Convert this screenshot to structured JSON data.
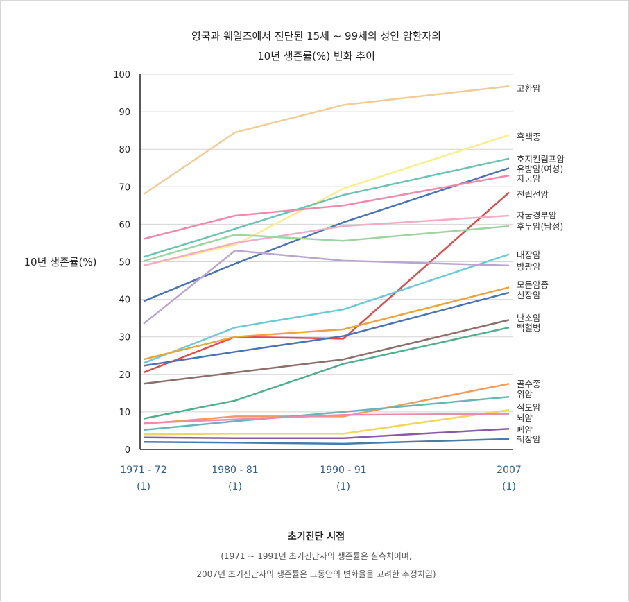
{
  "chart_data": {
    "type": "line",
    "title_line1": "영국과 웨일즈에서 진단된 15세 ~ 99세의 성인 암환자의",
    "title_line2": "10년 생존률(%) 변화 추이",
    "ylabel": "10년 생존률(%)",
    "ylim": [
      0,
      100
    ],
    "yticks": [
      "0",
      "10",
      "20",
      "30",
      "40",
      "50",
      "60",
      "70",
      "80",
      "90",
      "100"
    ],
    "categories": [
      "1971 - 72",
      "1980 - 81",
      "1990 - 91",
      "2007"
    ],
    "category_notes": [
      "(1)",
      "(1)",
      "(1)",
      "(1)"
    ],
    "xlabel": "초기진단 시점",
    "note_line1": "(1971 ~ 1991년 초기진단자의 생존률은 실측치이며,",
    "note_line2": "2007년 초기진단자의 생존률은 그동안의 변화율을 고려한 추정치임)",
    "grid": "horizontal",
    "series": [
      {
        "name": "고환암",
        "color": "#f0cc96",
        "values": [
          68,
          84.5,
          91.8,
          96.8
        ]
      },
      {
        "name": "흑색종",
        "color": "#f8ee8c",
        "values": [
          49,
          54.5,
          69.5,
          83.8
        ]
      },
      {
        "name": "호지킨림프암",
        "color": "#6cc3b4",
        "values": [
          51.3,
          58.8,
          67.8,
          77.5
        ]
      },
      {
        "name": "유방암(여성)",
        "color": "#4a73b5",
        "values": [
          39.5,
          49.5,
          60.5,
          75
        ]
      },
      {
        "name": "자궁암",
        "color": "#ee8bad",
        "values": [
          56.1,
          62.3,
          65,
          73
        ]
      },
      {
        "name": "전립선암",
        "color": "#e34a4a",
        "values": [
          20.5,
          30,
          29.5,
          68.5
        ]
      },
      {
        "name": "자궁경부암",
        "color": "#f2adc4",
        "values": [
          49,
          55,
          59.5,
          62.3
        ]
      },
      {
        "name": "후두암(남성)",
        "color": "#9fd3a1",
        "values": [
          50.2,
          57.2,
          55.6,
          59.5
        ]
      },
      {
        "name": "대장암",
        "color": "#6ccad6",
        "values": [
          23,
          32.5,
          37.3,
          52
        ]
      },
      {
        "name": "방광암",
        "color": "#b9a5d0",
        "values": [
          33.5,
          53,
          50.3,
          49
        ]
      },
      {
        "name": "모든암종",
        "color": "#e9a43a",
        "values": [
          24,
          30,
          32,
          43.2
        ]
      },
      {
        "name": "신장암",
        "color": "#4a73b5",
        "values": [
          22.3,
          26,
          30.2,
          41.8
        ]
      },
      {
        "name": "난소암",
        "color": "#8c6e6a",
        "values": [
          17.5,
          20.5,
          24,
          34.5
        ]
      },
      {
        "name": "백혈병",
        "color": "#4fae8c",
        "values": [
          8.2,
          13,
          22.8,
          32.5
        ]
      },
      {
        "name": "골수종",
        "color": "#f29b5c",
        "values": [
          6.8,
          8.8,
          8.8,
          17.5
        ]
      },
      {
        "name": "위암",
        "color": "#6ab4b4",
        "values": [
          5.2,
          7.5,
          10,
          14
        ]
      },
      {
        "name": "식도암",
        "color": "#f0d65a",
        "values": [
          4,
          4.2,
          4.2,
          10.5
        ]
      },
      {
        "name": "뇌암",
        "color": "#ee8bad",
        "values": [
          7,
          8,
          9.2,
          9.5
        ]
      },
      {
        "name": "폐암",
        "color": "#8a5aa8",
        "values": [
          3.2,
          3,
          3,
          5.5
        ]
      },
      {
        "name": "췌장암",
        "color": "#4a7ba8",
        "values": [
          2,
          1.8,
          1.5,
          2.8
        ]
      }
    ],
    "label_colors": {
      "x_tick": "#2e5d8f",
      "axis": "#222222",
      "grid": "#d4d4d4"
    }
  }
}
